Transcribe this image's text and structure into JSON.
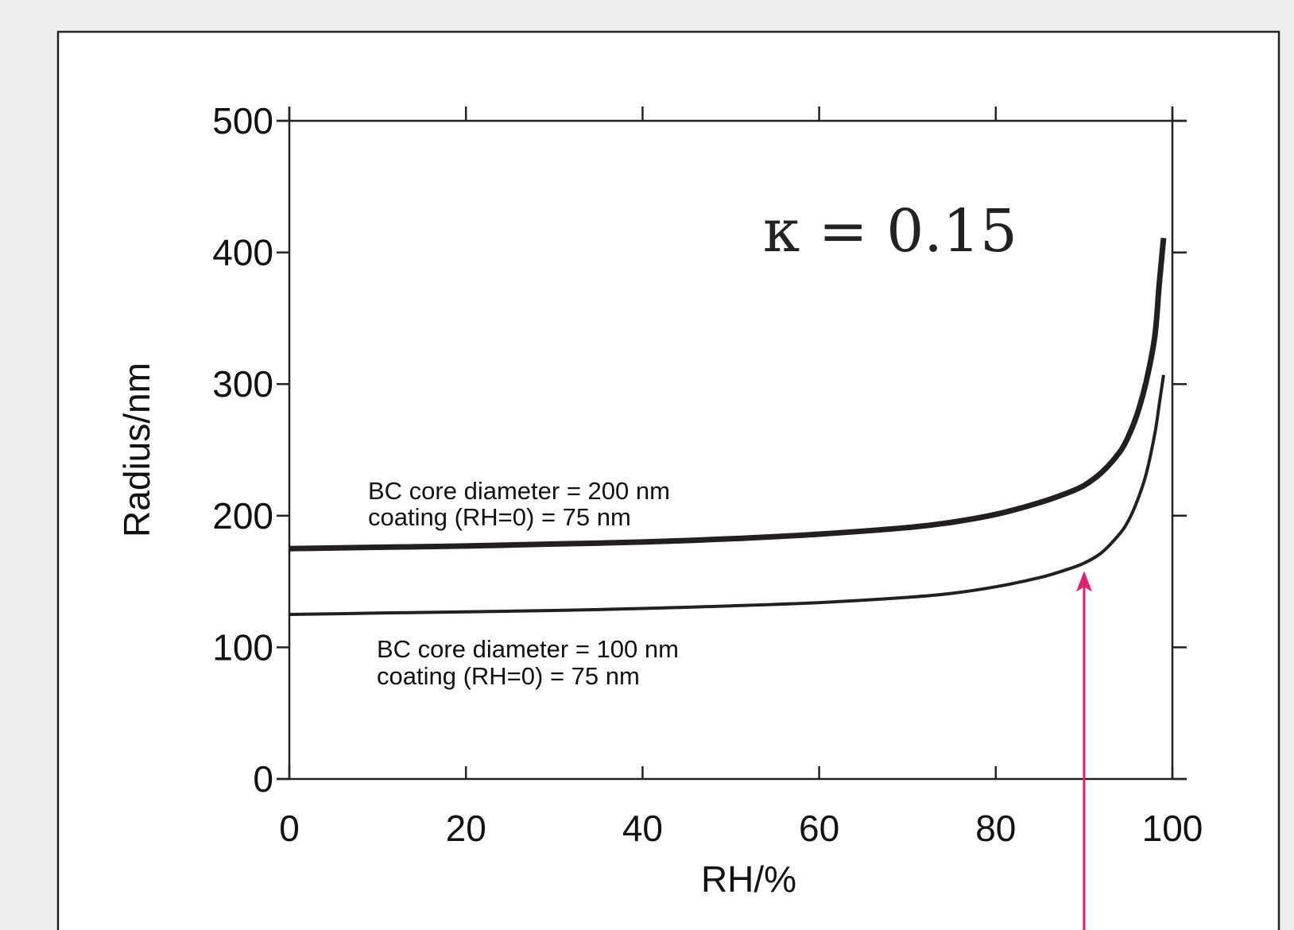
{
  "chart_data": {
    "type": "line",
    "xlabel": "RH/%",
    "ylabel": "Radius/nm",
    "xlim": [
      0,
      100
    ],
    "ylim": [
      0,
      500
    ],
    "x_ticks": [
      0,
      20,
      40,
      60,
      80,
      100
    ],
    "y_ticks": [
      0,
      100,
      200,
      300,
      400,
      500
    ],
    "grid": false,
    "kappa_label": "κ = 0.15",
    "series": [
      {
        "name": "BC core diameter = 200 nm",
        "label_lines": [
          "BC core diameter = 200 nm",
          "coating (RH=0) = 75 nm"
        ],
        "line_weight": "thick",
        "x": [
          0,
          10,
          20,
          30,
          40,
          50,
          60,
          70,
          75,
          80,
          85,
          88,
          90,
          92,
          94,
          95,
          96,
          97,
          98,
          98.5,
          99
        ],
        "y": [
          175,
          176,
          177,
          178.5,
          180,
          182.5,
          186,
          191,
          195,
          201,
          210,
          217,
          223,
          233,
          248,
          260,
          277,
          301,
          336,
          375,
          411
        ]
      },
      {
        "name": "BC core diameter = 100 nm",
        "label_lines": [
          "BC core diameter = 100 nm",
          "coating (RH=0) = 75 nm"
        ],
        "line_weight": "thin",
        "x": [
          0,
          10,
          20,
          30,
          40,
          50,
          60,
          70,
          75,
          80,
          85,
          88,
          90,
          92,
          94,
          95,
          96,
          97,
          98,
          98.5,
          99
        ],
        "y": [
          125,
          126,
          127,
          128,
          129.5,
          131.5,
          134,
          138,
          141,
          146,
          153,
          159,
          164,
          172,
          186,
          196,
          211,
          231,
          262,
          284,
          307
        ]
      }
    ],
    "marker_arrow": {
      "x": 90,
      "y_tip": 158,
      "color": "#e0206d"
    }
  },
  "colors": {
    "background": "#ededed",
    "panel": "#ffffff",
    "line": "#231f20",
    "arrow": "#e0206d"
  }
}
